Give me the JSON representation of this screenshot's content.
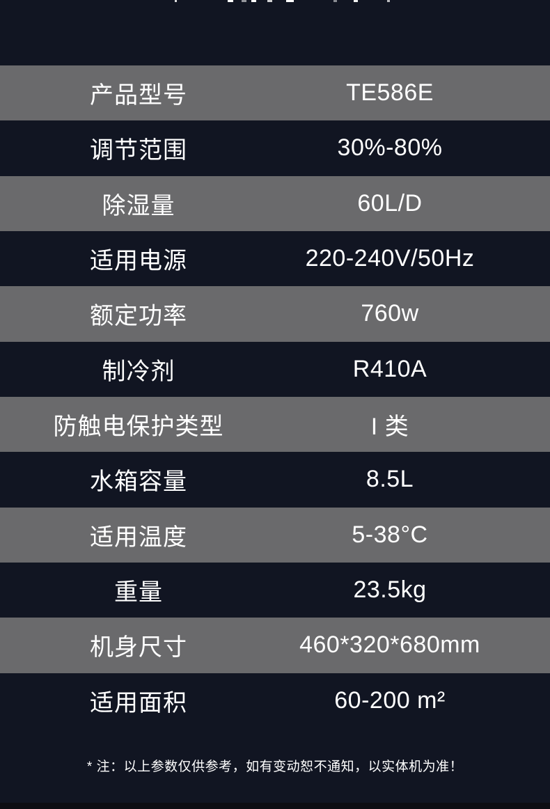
{
  "colors": {
    "page_background": "#111522",
    "row_gray": "#6a6a6c",
    "row_dark": "#111522",
    "bottom_strip": "#0d0d13",
    "text": "#ffffff"
  },
  "spec_table": {
    "rows": [
      {
        "label": "产品型号",
        "value": "TE586E"
      },
      {
        "label": "调节范围",
        "value": "30%-80%"
      },
      {
        "label": "除湿量",
        "value": "60L/D"
      },
      {
        "label": "适用电源",
        "value": "220-240V/50Hz"
      },
      {
        "label": "额定功率",
        "value": "760w"
      },
      {
        "label": "制冷剂",
        "value": "R410A"
      },
      {
        "label": "防触电保护类型",
        "value": "I 类"
      },
      {
        "label": "水箱容量",
        "value": "8.5L"
      },
      {
        "label": "适用温度",
        "value": "5-38°C"
      },
      {
        "label": "重量",
        "value": "23.5kg"
      },
      {
        "label": "机身尺寸",
        "value": "460*320*680mm"
      },
      {
        "label": "适用面积",
        "value": "60-200 m²"
      }
    ]
  },
  "footnote": "* 注：以上参数仅供参考，如有变动恕不通知，以实体机为准！"
}
